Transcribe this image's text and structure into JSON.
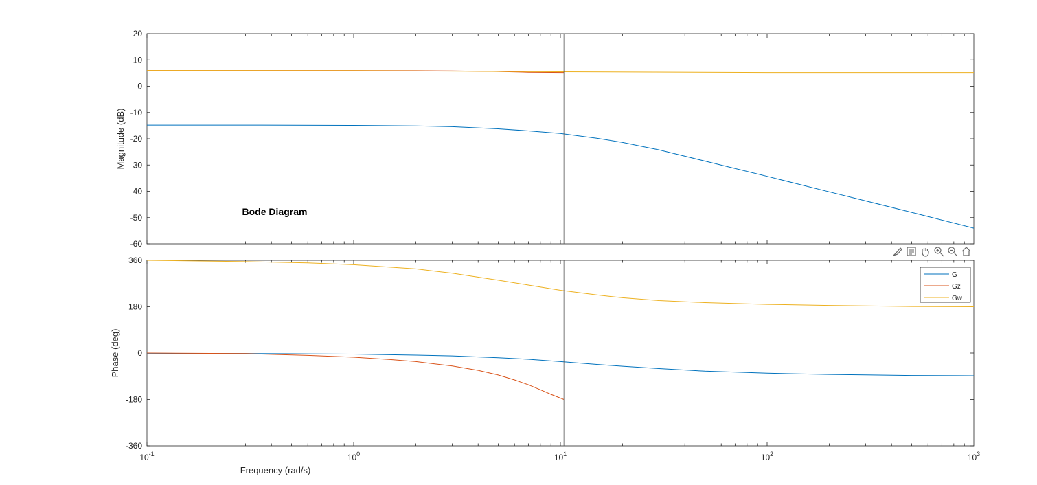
{
  "chart_data": {
    "type": "line",
    "title": "Bode Diagram",
    "xlabel": "Frequency  (rad/s)",
    "xscale": "log",
    "xlim": [
      0.1,
      1000
    ],
    "x_ticks": [
      {
        "value": 0.1,
        "base": "10",
        "exp": "-1"
      },
      {
        "value": 1,
        "base": "10",
        "exp": "0"
      },
      {
        "value": 10,
        "base": "10",
        "exp": "1"
      },
      {
        "value": 100,
        "base": "10",
        "exp": "2"
      },
      {
        "value": 1000,
        "base": "10",
        "exp": "3"
      }
    ],
    "marker_x": 10.4,
    "legend": {
      "placement": "top-right",
      "entries": [
        "G",
        "Gz",
        "Gw"
      ]
    },
    "magnitude": {
      "ylabel": "Magnitude (dB)",
      "ylim": [
        -60,
        20
      ],
      "yticks": [
        "-60",
        "-50",
        "-40",
        "-30",
        "-20",
        "-10",
        "0",
        "10",
        "20"
      ],
      "series": [
        {
          "name": "G",
          "color": "#0072BD",
          "x": [
            0.1,
            0.3,
            1,
            2,
            3,
            5,
            7,
            10,
            15,
            20,
            30,
            50,
            100,
            200,
            500,
            1000
          ],
          "y": [
            -14.8,
            -14.8,
            -14.9,
            -15.1,
            -15.4,
            -16.2,
            -17.0,
            -18.0,
            -19.8,
            -21.4,
            -24.2,
            -28.5,
            -34.3,
            -40.2,
            -48.0,
            -54.0
          ]
        },
        {
          "name": "Gz",
          "color": "#D95319",
          "x": [
            0.1,
            1,
            2,
            3,
            5,
            7,
            10.4
          ],
          "y": [
            6.0,
            6.0,
            5.9,
            5.8,
            5.6,
            5.3,
            5.2
          ]
        },
        {
          "name": "Gw",
          "color": "#EDB120",
          "x": [
            0.1,
            1,
            10,
            100,
            1000
          ],
          "y": [
            6.0,
            5.9,
            5.5,
            5.2,
            5.2
          ]
        }
      ]
    },
    "phase": {
      "ylabel": "Phase (deg)",
      "ylim": [
        -360,
        360
      ],
      "yticks": [
        "-360",
        "-180",
        "0",
        "180",
        "360"
      ],
      "series": [
        {
          "name": "G",
          "color": "#0072BD",
          "x": [
            0.1,
            0.3,
            1,
            2,
            3,
            5,
            7,
            10,
            15,
            20,
            30,
            50,
            100,
            200,
            500,
            1000
          ],
          "y": [
            -1,
            -1.5,
            -4,
            -8,
            -11,
            -18,
            -24,
            -33,
            -44,
            -51,
            -60,
            -70,
            -78,
            -83,
            -87,
            -88
          ]
        },
        {
          "name": "Gz",
          "color": "#D95319",
          "x": [
            0.1,
            0.3,
            0.6,
            1,
            1.5,
            2,
            3,
            4,
            5,
            6,
            7,
            8,
            9,
            10.4
          ],
          "y": [
            0,
            -2,
            -9,
            -16,
            -25,
            -33,
            -50,
            -67,
            -85,
            -104,
            -123,
            -142,
            -160,
            -180
          ]
        },
        {
          "name": "Gw",
          "color": "#EDB120",
          "x": [
            0.1,
            0.3,
            0.6,
            1,
            2,
            3,
            5,
            7,
            10,
            15,
            20,
            30,
            50,
            100,
            200,
            500,
            1000
          ],
          "y": [
            360,
            355,
            350,
            343,
            327,
            310,
            283,
            264,
            244,
            226,
            215,
            204,
            196,
            189,
            185,
            181,
            180
          ]
        }
      ]
    }
  },
  "toolbar": {
    "icons": [
      "brush-icon",
      "data-tips-icon",
      "pan-icon",
      "zoom-in-icon",
      "zoom-out-icon",
      "home-icon"
    ]
  }
}
